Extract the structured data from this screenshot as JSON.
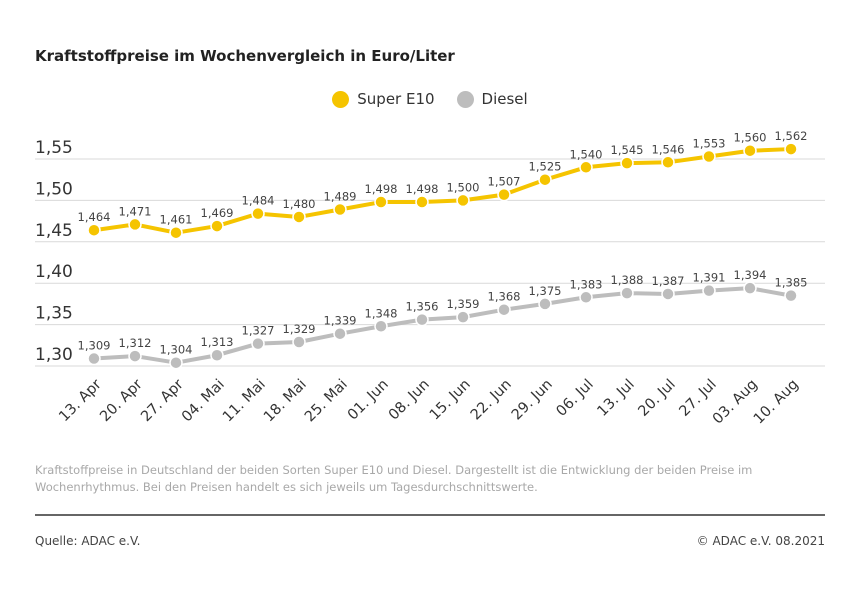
{
  "chart_data": {
    "type": "line",
    "title": "Kraftstoffpreise im Wochenvergleich in Euro/Liter",
    "categories": [
      "13. Apr",
      "20. Apr",
      "27. Apr",
      "04. Mai",
      "11. Mai",
      "18. Mai",
      "25. Mai",
      "01. Jun",
      "08. Jun",
      "15. Jun",
      "22. Jun",
      "29. Jun",
      "06. Jul",
      "13. Jul",
      "20. Jul",
      "27. Jul",
      "03. Aug",
      "10. Aug"
    ],
    "series": [
      {
        "name": "Super E10",
        "color": "#f5c400",
        "values": [
          1.464,
          1.471,
          1.461,
          1.469,
          1.484,
          1.48,
          1.489,
          1.498,
          1.498,
          1.5,
          1.507,
          1.525,
          1.54,
          1.545,
          1.546,
          1.553,
          1.56,
          1.562
        ]
      },
      {
        "name": "Diesel",
        "color": "#bdbdbd",
        "values": [
          1.309,
          1.312,
          1.304,
          1.313,
          1.327,
          1.329,
          1.339,
          1.348,
          1.356,
          1.359,
          1.368,
          1.375,
          1.383,
          1.388,
          1.387,
          1.391,
          1.394,
          1.385
        ]
      }
    ],
    "yticks": [
      "1,30",
      "1,35",
      "1,40",
      "1,45",
      "1,50",
      "1,55"
    ],
    "ylim": [
      1.3,
      1.55
    ],
    "grid": true,
    "legend_position": "top-center",
    "decimal_separator": ","
  },
  "note": "Kraftstoffpreise in Deutschland der beiden Sorten Super E10 und Diesel. Dargestellt ist die Entwicklung der beiden Preise im Wochenrhythmus. Bei den Preisen handelt es sich jeweils um Tagesdurchschnittswerte.",
  "source": "Quelle: ADAC e.V.",
  "copyright": "© ADAC e.V. 08.2021"
}
